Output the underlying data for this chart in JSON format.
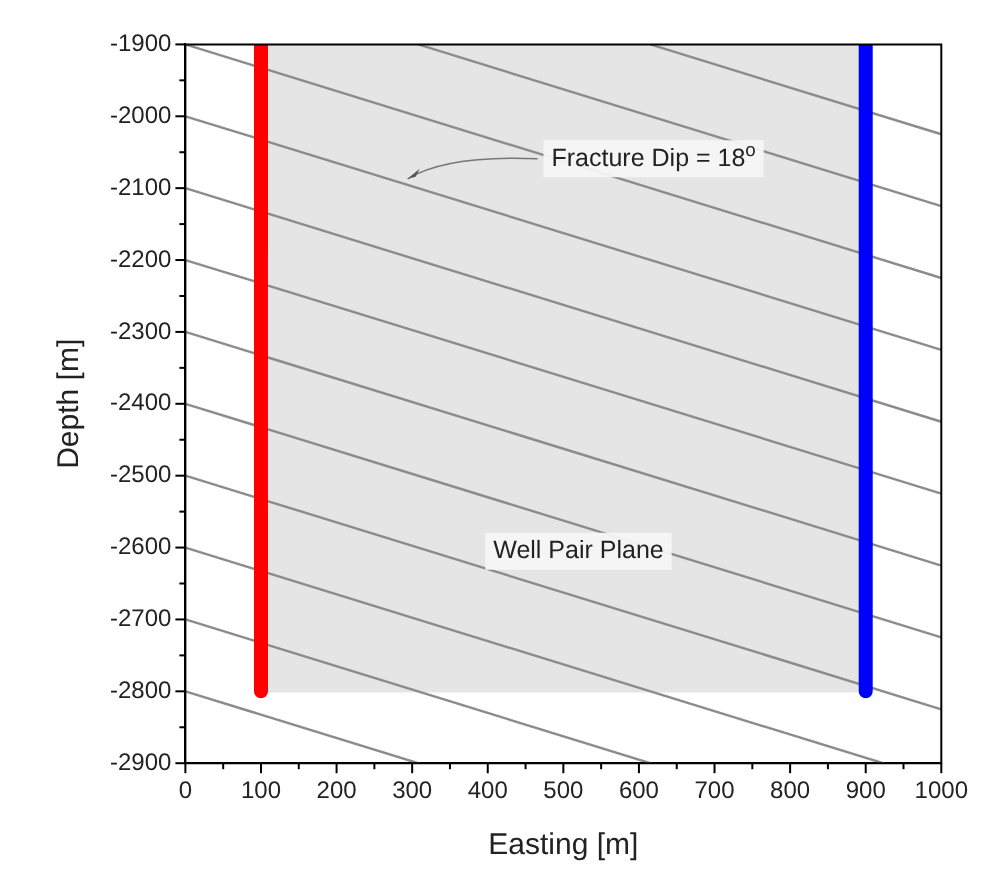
{
  "chart_data": {
    "type": "line",
    "xlabel": "Easting [m]",
    "ylabel": "Depth [m]",
    "xlim": [
      0,
      1000
    ],
    "ylim": [
      -2900,
      -1900
    ],
    "xticks": [
      0,
      {
        "value": 50,
        "label": null
      },
      100,
      {
        "value": 150,
        "label": null
      },
      200,
      {
        "value": 250,
        "label": null
      },
      300,
      {
        "value": 350,
        "label": null
      },
      400,
      {
        "value": 450,
        "label": null
      },
      500,
      {
        "value": 550,
        "label": null
      },
      600,
      {
        "value": 650,
        "label": null
      },
      700,
      {
        "value": 750,
        "label": null
      },
      800,
      {
        "value": 850,
        "label": null
      },
      900,
      {
        "value": 950,
        "label": null
      },
      1000
    ],
    "yticks": [
      -1900,
      {
        "value": -1950,
        "label": null
      },
      -2000,
      {
        "value": -2050,
        "label": null
      },
      -2100,
      {
        "value": -2150,
        "label": null
      },
      -2200,
      {
        "value": -2250,
        "label": null
      },
      -2300,
      {
        "value": -2350,
        "label": null
      },
      -2400,
      {
        "value": -2450,
        "label": null
      },
      -2500,
      {
        "value": -2550,
        "label": null
      },
      -2600,
      {
        "value": -2650,
        "label": null
      },
      -2700,
      {
        "value": -2750,
        "label": null
      },
      -2800,
      {
        "value": -2850,
        "label": null
      },
      -2900
    ],
    "grid": false,
    "legend": false,
    "marker": "none",
    "series": [
      {
        "type": "line",
        "color": "#e5e5e5",
        "x": [
          100,
          900
        ],
        "values": [
          -2800,
          -2800
        ],
        "lower": [
          -2800,
          -2800
        ],
        "upper": [
          -1900,
          -1900
        ]
      },
      {
        "color": "#8c8c8c",
        "x": [
          615,
          1000
        ],
        "values": [
          -1900,
          -2025
        ]
      },
      {
        "color": "#8c8c8c",
        "x": [
          308,
          1000
        ],
        "values": [
          -1900,
          -2125
        ]
      },
      {
        "color": "#8c8c8c",
        "x": [
          0,
          1000
        ],
        "values": [
          -1900,
          -2225
        ]
      },
      {
        "color": "#8c8c8c",
        "x": [
          0,
          1000
        ],
        "values": [
          -2000,
          -2325
        ]
      },
      {
        "color": "#8c8c8c",
        "x": [
          0,
          1000
        ],
        "values": [
          -2100,
          -2425
        ]
      },
      {
        "color": "#8c8c8c",
        "x": [
          0,
          1000
        ],
        "values": [
          -2200,
          -2525
        ]
      },
      {
        "color": "#8c8c8c",
        "x": [
          0,
          1000
        ],
        "values": [
          -2300,
          -2625
        ]
      },
      {
        "color": "#8c8c8c",
        "x": [
          0,
          1000
        ],
        "values": [
          -2400,
          -2725
        ]
      },
      {
        "color": "#8c8c8c",
        "x": [
          0,
          1000
        ],
        "values": [
          -2500,
          -2825
        ]
      },
      {
        "color": "#8c8c8c",
        "x": [
          0,
          923
        ],
        "values": [
          -2600,
          -2900
        ]
      },
      {
        "color": "#8c8c8c",
        "x": [
          0,
          615
        ],
        "values": [
          -2700,
          -2900
        ]
      },
      {
        "color": "#8c8c8c",
        "x": [
          0,
          308
        ],
        "values": [
          -2800,
          -2900
        ]
      },
      {
        "color": "#ff0000",
        "x": [
          100,
          100
        ],
        "values": [
          -1900,
          -2800
        ]
      },
      {
        "color": "#0000ff",
        "x": [
          900,
          900
        ],
        "values": [
          -1900,
          -2800
        ]
      }
    ],
    "annotations": [
      {
        "text": "Fracture Dip = 18$^{o}$",
        "x": 294,
        "y": -2087
      },
      "Well Pair Plane"
    ]
  }
}
